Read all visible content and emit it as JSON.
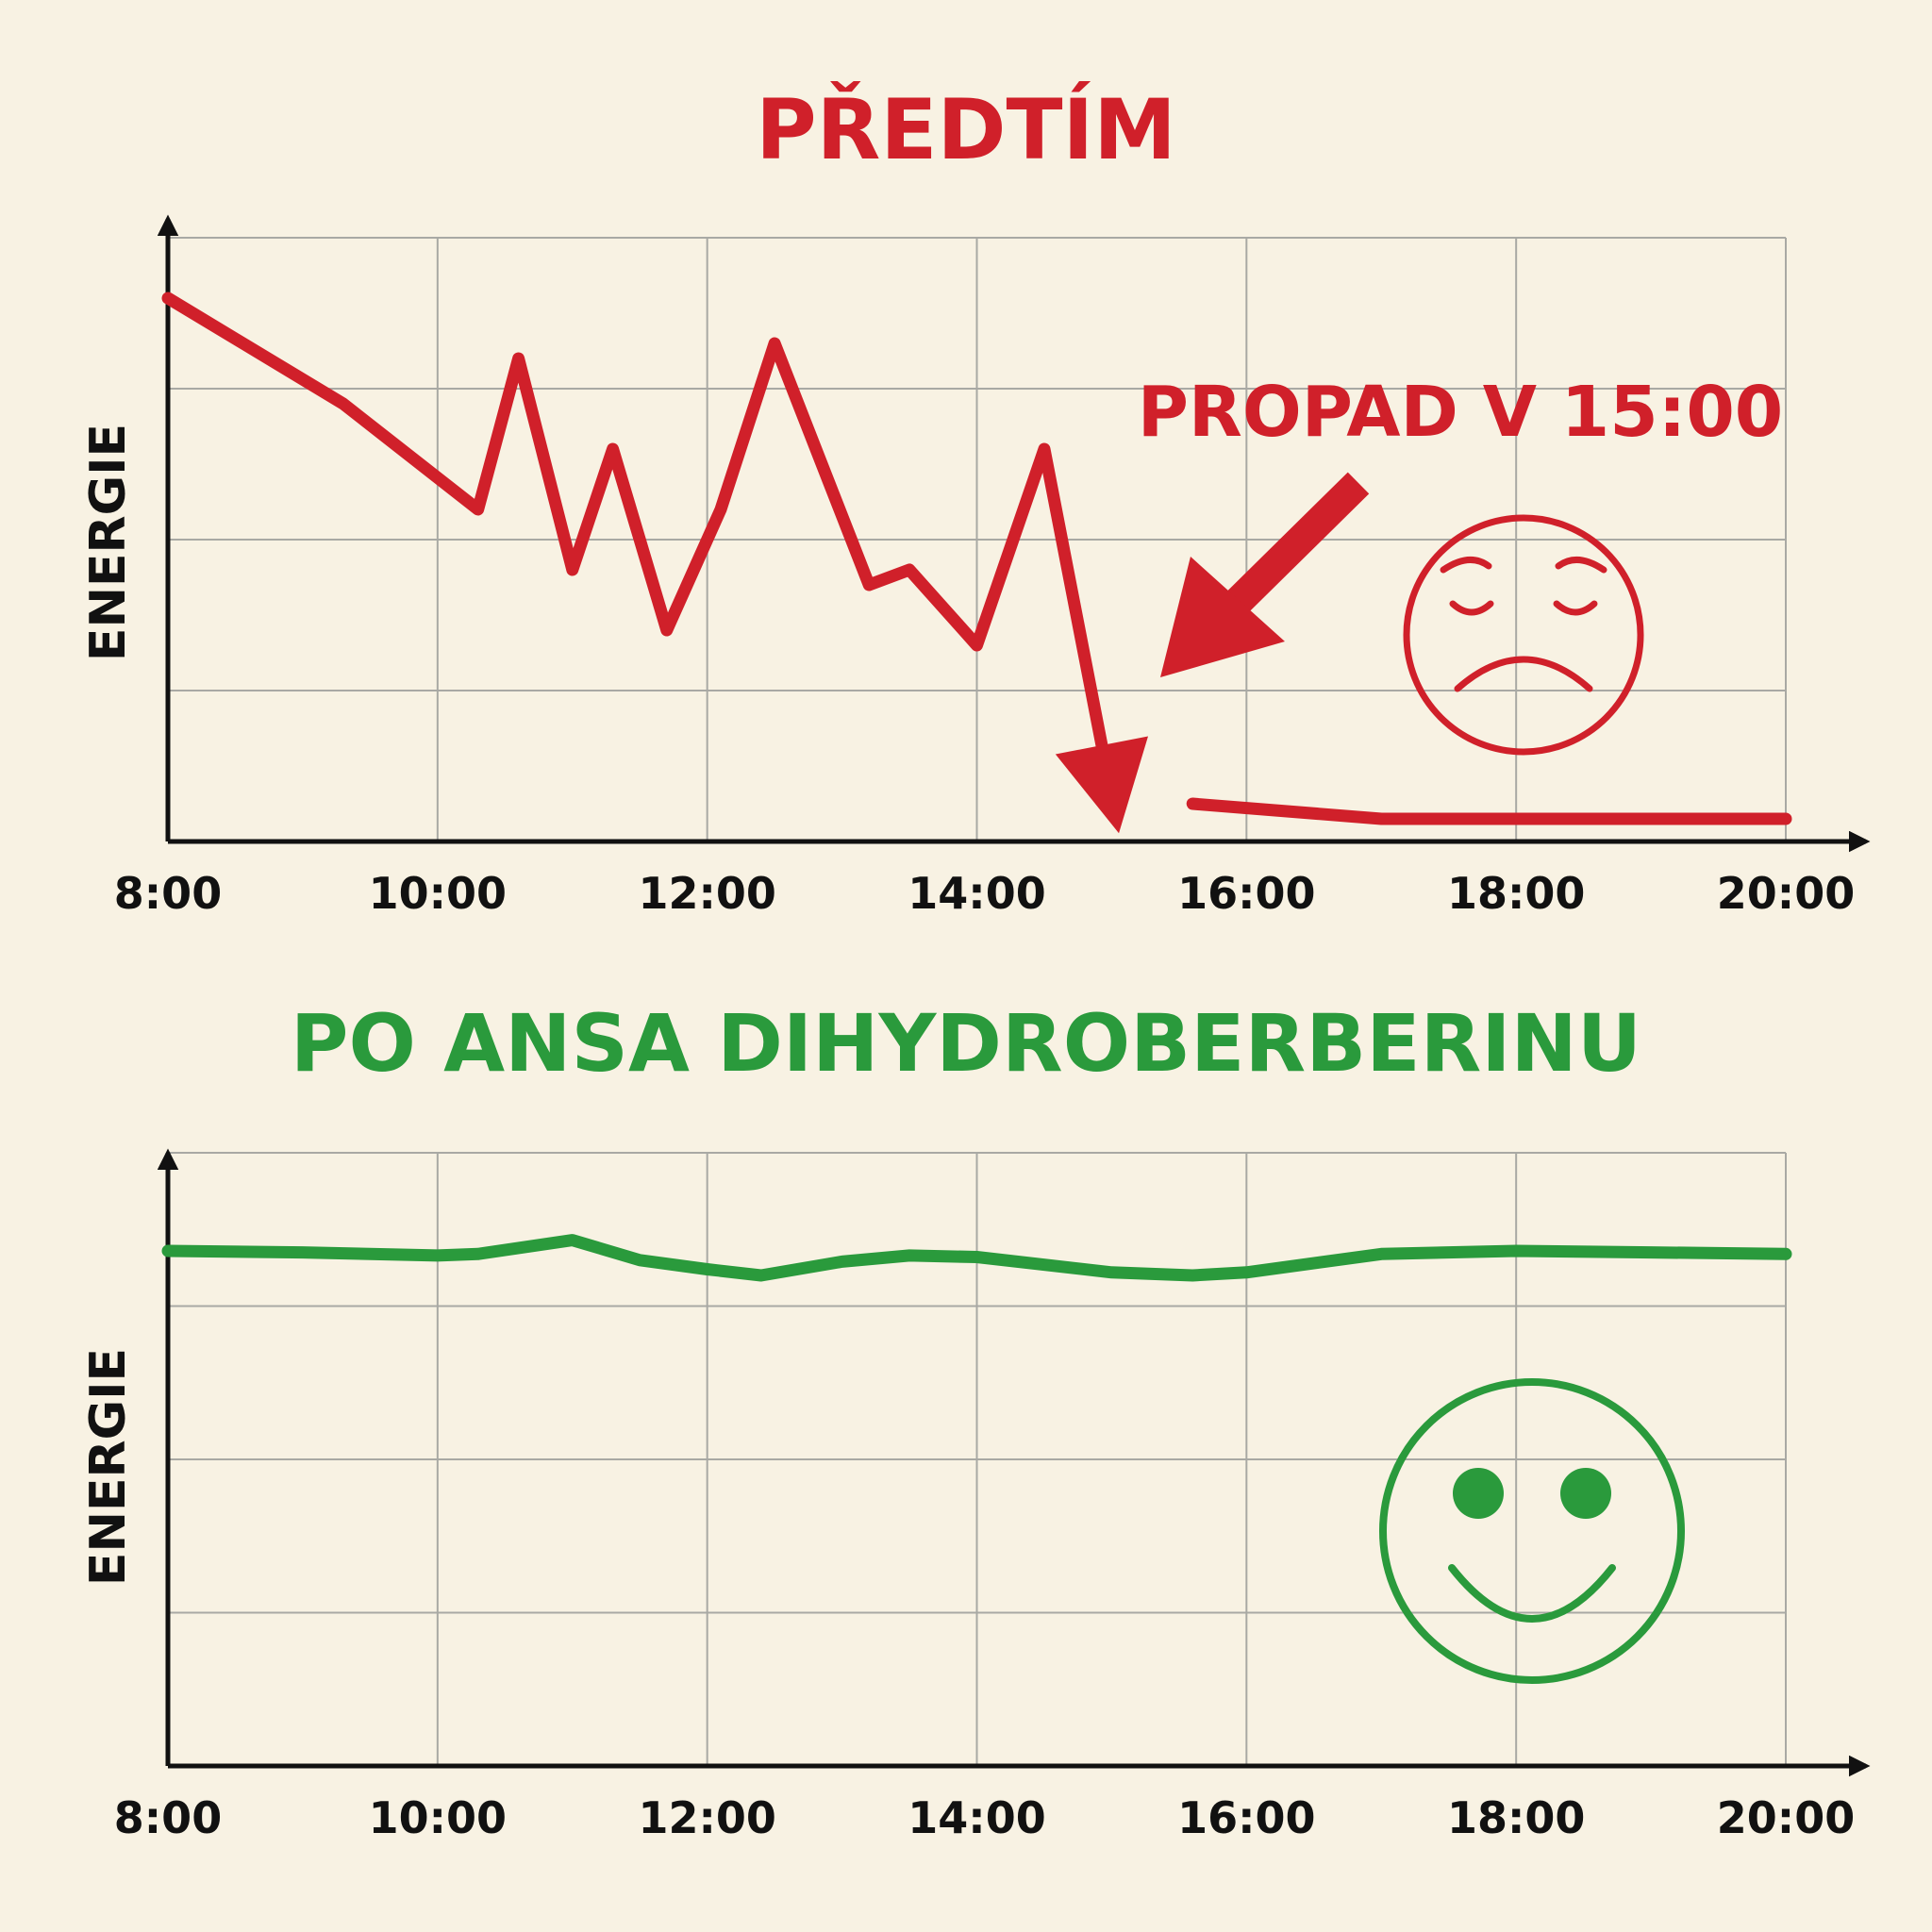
{
  "chart_data": [
    {
      "type": "line",
      "title": "PŘEDTÍM",
      "ylabel": "ENERGIE",
      "xlabel": "",
      "x_ticks": [
        "8:00",
        "10:00",
        "12:00",
        "14:00",
        "16:00",
        "18:00",
        "20:00"
      ],
      "xlim": [
        8,
        20
      ],
      "ylim": [
        0,
        4
      ],
      "grid": true,
      "annotation": "PROPAD V 15:00",
      "face": "sad",
      "color": "#d0202a",
      "series": [
        {
          "segments": [
            [
              [
                8.0,
                3.6
              ],
              [
                9.3,
                2.9
              ],
              [
                10.3,
                2.2
              ],
              [
                10.6,
                3.2
              ],
              [
                11.0,
                1.8
              ],
              [
                11.3,
                2.6
              ],
              [
                11.7,
                1.4
              ],
              [
                12.1,
                2.2
              ],
              [
                12.5,
                3.3
              ],
              [
                13.2,
                1.7
              ],
              [
                13.5,
                1.8
              ],
              [
                14.0,
                1.3
              ],
              [
                14.5,
                2.6
              ],
              [
                15.0,
                0.3
              ]
            ],
            [
              [
                15.6,
                0.25
              ],
              [
                17.0,
                0.15
              ],
              [
                20.0,
                0.15
              ]
            ]
          ]
        }
      ]
    },
    {
      "type": "line",
      "title": "PO ANSA DIHYDROBERBERINU",
      "ylabel": "ENERGIE",
      "xlabel": "",
      "x_ticks": [
        "8:00",
        "10:00",
        "12:00",
        "14:00",
        "16:00",
        "18:00",
        "20:00"
      ],
      "xlim": [
        8,
        20
      ],
      "ylim": [
        0,
        4
      ],
      "grid": true,
      "face": "happy",
      "color": "#2a9a3c",
      "series": [
        {
          "segments": [
            [
              [
                8.0,
                3.36
              ],
              [
                9.0,
                3.35
              ],
              [
                10.0,
                3.33
              ],
              [
                10.3,
                3.34
              ],
              [
                11.0,
                3.43
              ],
              [
                11.5,
                3.3
              ],
              [
                12.0,
                3.24
              ],
              [
                12.4,
                3.2
              ],
              [
                13.0,
                3.29
              ],
              [
                13.5,
                3.33
              ],
              [
                14.0,
                3.32
              ],
              [
                15.0,
                3.22
              ],
              [
                15.6,
                3.2
              ],
              [
                16.0,
                3.22
              ],
              [
                17.0,
                3.34
              ],
              [
                18.0,
                3.36
              ],
              [
                19.0,
                3.35
              ],
              [
                20.0,
                3.34
              ]
            ]
          ]
        }
      ]
    }
  ]
}
